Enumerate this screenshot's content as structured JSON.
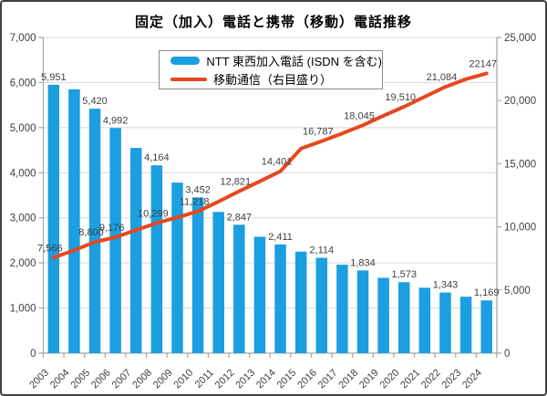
{
  "chart_data": {
    "type": "bar+line-combo",
    "title": "固定（加入）電話と携帯（移動）電話推移",
    "categories": [
      "2003",
      "2004",
      "2005",
      "2006",
      "2007",
      "2008",
      "2009",
      "2010",
      "2011",
      "2012",
      "2013",
      "2014",
      "2015",
      "2016",
      "2017",
      "2018",
      "2019",
      "2020",
      "2021",
      "2022",
      "2023",
      "2024"
    ],
    "left_axis": {
      "min": 0,
      "max": 7000,
      "step": 1000,
      "tick_labels": [
        "0",
        "1,000",
        "2,000",
        "3,000",
        "4,000",
        "5,000",
        "6,000",
        "7,000"
      ]
    },
    "right_axis": {
      "min": 0,
      "max": 25000,
      "step": 5000,
      "tick_labels": [
        "0",
        "5,000",
        "10,000",
        "15,000",
        "20,000",
        "25,000"
      ]
    },
    "legend_position": "top-inside",
    "grid": true,
    "series": [
      {
        "name": "NTT 東西加入電話 (ISDN を含む)",
        "type": "bar",
        "axis": "left",
        "color": "#1B9FE0",
        "values": [
          5951,
          5850,
          5420,
          4992,
          4550,
          4164,
          3780,
          3452,
          3130,
          2847,
          2580,
          2411,
          2250,
          2114,
          1960,
          1834,
          1670,
          1573,
          1450,
          1343,
          1250,
          1169
        ],
        "data_labels": [
          "5,951",
          null,
          "5,420",
          "4,992",
          null,
          "4,164",
          null,
          "3,452",
          null,
          "2,847",
          null,
          "2,411",
          null,
          "2,114",
          null,
          "1,834",
          null,
          "1,573",
          null,
          "1,343",
          null,
          "1,169"
        ]
      },
      {
        "name": "移動通信（右目盛り）",
        "type": "line",
        "axis": "right",
        "color": "#E5481F",
        "values": [
          7566,
          8150,
          8800,
          9176,
          9750,
          10299,
          10750,
          11218,
          12000,
          12821,
          13600,
          14401,
          16200,
          16787,
          17400,
          18045,
          18800,
          19510,
          20300,
          21084,
          21700,
          22147
        ],
        "data_labels": [
          "7,566",
          null,
          "8,800",
          "9,176",
          null,
          "10,299",
          null,
          "11,218",
          null,
          "12,821",
          null,
          "14,401",
          null,
          "16,787",
          null,
          "18,045",
          null,
          "19,510",
          null,
          "21,084",
          null,
          "22147"
        ]
      }
    ]
  },
  "colors": {
    "bar": "#1B9FE0",
    "line": "#E5481F",
    "gridline": "#D9D9D9",
    "axis": "#A6A6A6",
    "text": "#404040",
    "frame_border": "#404040",
    "legend_border": "#8C8C8C"
  }
}
